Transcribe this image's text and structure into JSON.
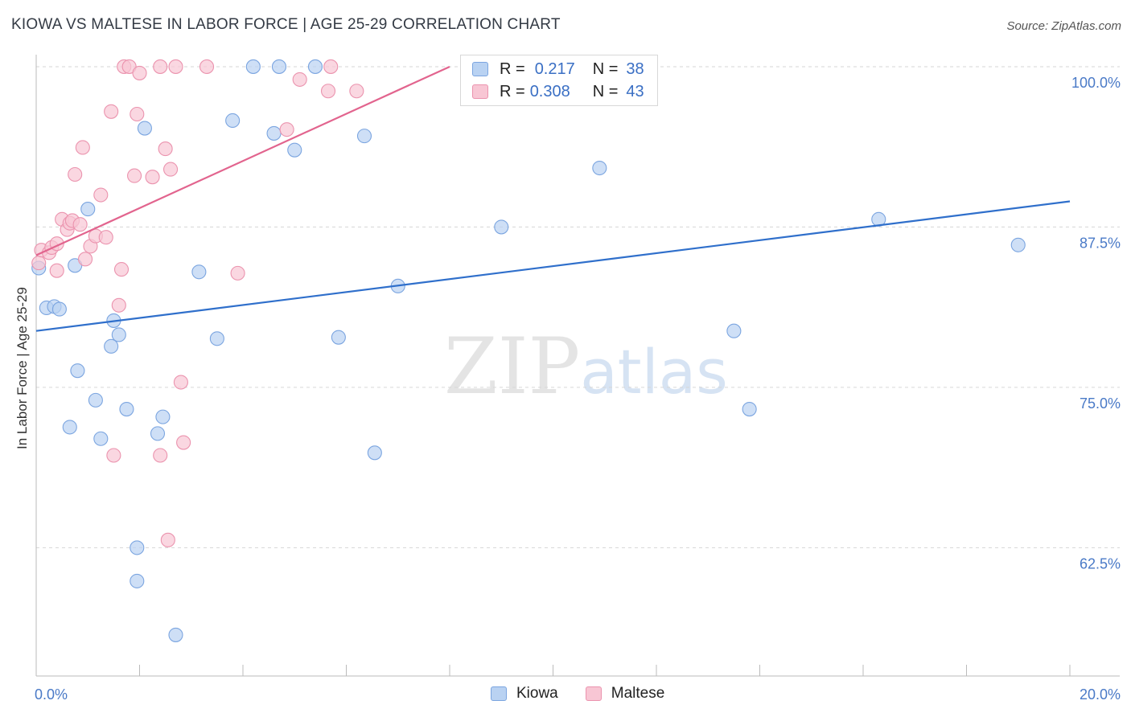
{
  "title": "KIOWA VS MALTESE IN LABOR FORCE | AGE 25-29 CORRELATION CHART",
  "source": "Source: ZipAtlas.com",
  "watermark": {
    "zip": "ZIP",
    "atlas": "atlas"
  },
  "legend": {
    "r_label": "R =",
    "n_label": "N =",
    "rows": [
      {
        "name": "Kiowa",
        "r": "0.217",
        "n": "38"
      },
      {
        "name": "Maltese",
        "r": "0.308",
        "n": "43"
      }
    ]
  },
  "chart_data": {
    "type": "scatter",
    "title": "KIOWA VS MALTESE IN LABOR FORCE | AGE 25-29 CORRELATION CHART",
    "xlabel": "",
    "ylabel": "In Labor Force | Age 25-29",
    "xlim": [
      0,
      20
    ],
    "ylim": [
      52.5,
      101.5
    ],
    "x_tick_labels": [
      "0.0%",
      "20.0%"
    ],
    "y_ticks": [
      62.5,
      75.0,
      87.5,
      100.0
    ],
    "y_tick_labels": [
      "62.5%",
      "75.0%",
      "87.5%",
      "100.0%"
    ],
    "colors": {
      "kiowa_fill": "#b9d2f2",
      "kiowa_edge": "#7ba5e0",
      "kiowa_line": "#2f6fcb",
      "maltese_fill": "#f8c6d4",
      "maltese_edge": "#eb93ae",
      "maltese_line": "#e2648e"
    },
    "series": [
      {
        "name": "Kiowa",
        "trend": {
          "x": [
            0,
            20
          ],
          "y": [
            79.4,
            89.5
          ]
        },
        "points": [
          [
            0.05,
            84.3
          ],
          [
            0.2,
            81.2
          ],
          [
            0.35,
            81.3
          ],
          [
            0.45,
            81.1
          ],
          [
            0.75,
            84.5
          ],
          [
            0.8,
            76.3
          ],
          [
            1.0,
            88.9
          ],
          [
            1.15,
            74.0
          ],
          [
            1.25,
            71.0
          ],
          [
            0.65,
            71.9
          ],
          [
            1.45,
            78.2
          ],
          [
            1.5,
            80.2
          ],
          [
            1.6,
            79.1
          ],
          [
            1.75,
            73.3
          ],
          [
            2.1,
            95.2
          ],
          [
            2.35,
            71.4
          ],
          [
            2.45,
            72.7
          ],
          [
            1.95,
            62.5
          ],
          [
            1.95,
            59.9
          ],
          [
            2.7,
            55.7
          ],
          [
            3.15,
            84.0
          ],
          [
            3.5,
            78.8
          ],
          [
            3.8,
            95.8
          ],
          [
            4.2,
            100.0
          ],
          [
            4.6,
            94.8
          ],
          [
            4.7,
            100.0
          ],
          [
            5.0,
            93.5
          ],
          [
            5.4,
            100.0
          ],
          [
            5.85,
            78.9
          ],
          [
            6.35,
            94.6
          ],
          [
            6.55,
            69.9
          ],
          [
            7.0,
            82.9
          ],
          [
            9.0,
            87.5
          ],
          [
            10.9,
            92.1
          ],
          [
            13.5,
            79.4
          ],
          [
            13.8,
            73.3
          ],
          [
            16.3,
            88.1
          ],
          [
            19.0,
            86.1
          ]
        ]
      },
      {
        "name": "Maltese",
        "trend": {
          "x": [
            0,
            8.0
          ],
          "y": [
            85.3,
            100.0
          ]
        },
        "points": [
          [
            0.05,
            84.7
          ],
          [
            0.1,
            85.7
          ],
          [
            0.25,
            85.5
          ],
          [
            0.3,
            85.9
          ],
          [
            0.4,
            86.2
          ],
          [
            0.4,
            84.1
          ],
          [
            0.5,
            88.1
          ],
          [
            0.6,
            87.3
          ],
          [
            0.65,
            87.8
          ],
          [
            0.7,
            88.0
          ],
          [
            0.75,
            91.6
          ],
          [
            0.85,
            87.7
          ],
          [
            0.9,
            93.7
          ],
          [
            0.95,
            85.0
          ],
          [
            1.05,
            86.0
          ],
          [
            1.15,
            86.8
          ],
          [
            1.25,
            90.0
          ],
          [
            1.35,
            86.7
          ],
          [
            1.45,
            96.5
          ],
          [
            1.5,
            69.7
          ],
          [
            1.6,
            81.4
          ],
          [
            1.65,
            84.2
          ],
          [
            1.7,
            100.0
          ],
          [
            1.8,
            100.0
          ],
          [
            1.9,
            91.5
          ],
          [
            1.95,
            96.3
          ],
          [
            2.0,
            99.5
          ],
          [
            2.25,
            91.4
          ],
          [
            2.4,
            100.0
          ],
          [
            2.4,
            69.7
          ],
          [
            2.5,
            93.6
          ],
          [
            2.55,
            63.1
          ],
          [
            2.6,
            92.0
          ],
          [
            2.7,
            100.0
          ],
          [
            2.8,
            75.4
          ],
          [
            2.85,
            70.7
          ],
          [
            3.3,
            100.0
          ],
          [
            3.9,
            83.9
          ],
          [
            4.85,
            95.1
          ],
          [
            5.1,
            99.0
          ],
          [
            5.65,
            98.1
          ],
          [
            5.7,
            100.0
          ],
          [
            6.2,
            98.1
          ]
        ]
      }
    ]
  }
}
